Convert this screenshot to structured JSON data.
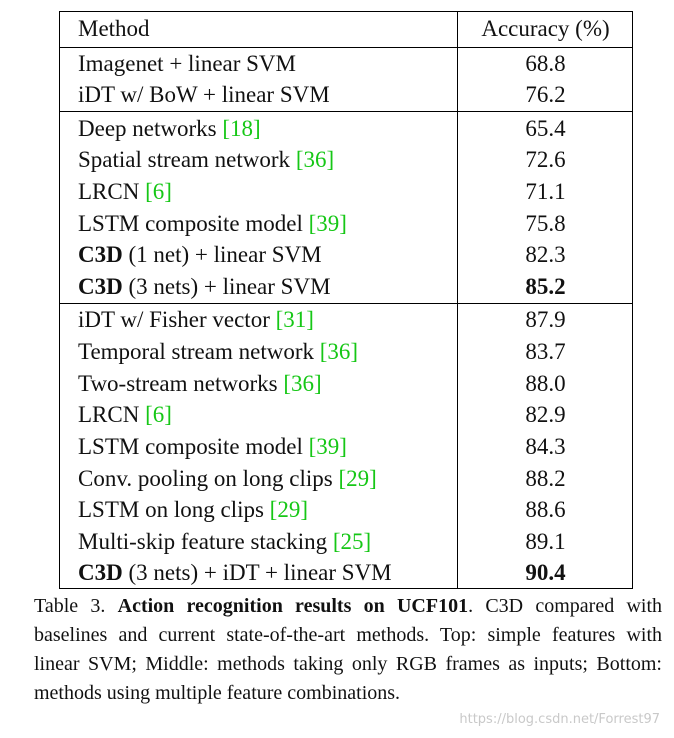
{
  "header": {
    "method": "Method",
    "accuracy": "Accuracy (%)"
  },
  "rows": [
    {
      "method": "Imagenet + linear SVM",
      "acc": "68.8"
    },
    {
      "method": "iDT w/ BoW + linear SVM",
      "acc": "76.2"
    },
    {
      "method": "Deep networks ",
      "cite": "[18]",
      "acc": "65.4"
    },
    {
      "method": "Spatial stream network ",
      "cite": "[36]",
      "acc": "72.6"
    },
    {
      "method": "LRCN ",
      "cite": "[6]",
      "acc": "71.1"
    },
    {
      "method": "LSTM composite model ",
      "cite": "[39]",
      "acc": "75.8"
    },
    {
      "bold_prefix": "C3D",
      "method": " (1 net) + linear SVM",
      "acc": "82.3"
    },
    {
      "bold_prefix": "C3D",
      "method": " (3 nets) + linear SVM",
      "acc": "85.2"
    },
    {
      "method": "iDT w/ Fisher vector ",
      "cite": "[31]",
      "acc": "87.9"
    },
    {
      "method": "Temporal stream network ",
      "cite": "[36]",
      "acc": "83.7"
    },
    {
      "method": "Two-stream networks ",
      "cite": "[36]",
      "acc": "88.0"
    },
    {
      "method": "LRCN ",
      "cite": "[6]",
      "acc": "82.9"
    },
    {
      "method": "LSTM composite model ",
      "cite": "[39]",
      "acc": "84.3"
    },
    {
      "method": "Conv. pooling on long clips ",
      "cite": "[29]",
      "acc": "88.2"
    },
    {
      "method": "LSTM on long clips ",
      "cite": "[29]",
      "acc": "88.6"
    },
    {
      "method": "Multi-skip feature stacking ",
      "cite": "[25]",
      "acc": "89.1"
    },
    {
      "bold_prefix": "C3D",
      "method": " (3 nets) + iDT + linear SVM",
      "acc": "90.4"
    }
  ],
  "caption": {
    "prefix": "Table 3. ",
    "bold": "Action recognition results on UCF101",
    "text": ". C3D compared with baselines and current state-of-the-art methods. Top: simple features with linear SVM; Middle: methods taking only RGB frames as inputs; Bottom: methods using multiple feature combinations."
  },
  "watermark": "https://blog.csdn.net/Forrest97",
  "colors": {
    "citation": "#16c716"
  }
}
